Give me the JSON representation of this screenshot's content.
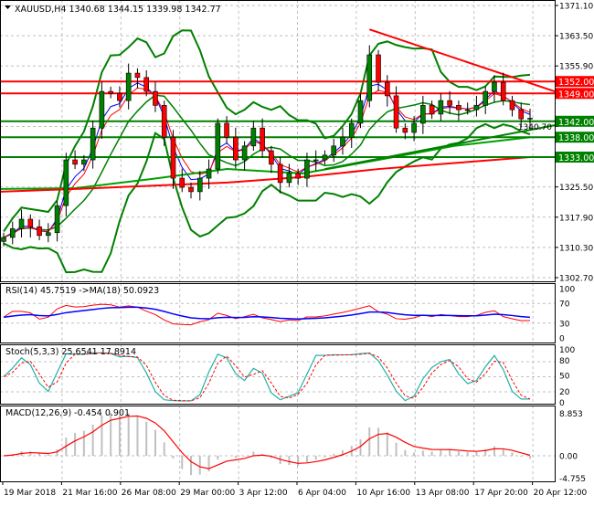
{
  "chart_data": {
    "type": "candlestick",
    "symbol_header": "XAUUSD,H4  1340.68 1344.15 1339.98 1342.77",
    "price_axis": {
      "range": [
        1302.7,
        1371.1
      ],
      "ticks": [
        "1371.10",
        "1363.50",
        "1355.90",
        "1340.70",
        "1325.50",
        "1317.90",
        "1310.30",
        "1302.70"
      ]
    },
    "time_axis": [
      "19 Mar 2018",
      "21 Mar 16:00",
      "26 Mar 08:00",
      "29 Mar 00:00",
      "3 Apr 12:00",
      "6 Apr 04:00",
      "10 Apr 16:00",
      "13 Apr 08:00",
      "17 Apr 20:00",
      "20 Apr 12:00"
    ],
    "closes": [
      1312.8,
      1315.0,
      1317.4,
      1315.5,
      1313.3,
      1314.0,
      1320.8,
      1332.3,
      1331.2,
      1332.3,
      1340.3,
      1349.5,
      1349.0,
      1347.2,
      1354.1,
      1353.0,
      1349.5,
      1346.0,
      1338.0,
      1327.7,
      1325.4,
      1324.3,
      1327.7,
      1330.0,
      1341.5,
      1338.0,
      1332.3,
      1335.8,
      1340.3,
      1334.6,
      1331.2,
      1326.6,
      1328.9,
      1327.7,
      1332.3,
      1332.3,
      1333.5,
      1335.8,
      1338.0,
      1341.5,
      1347.2,
      1358.7,
      1351.8,
      1348.4,
      1340.3,
      1339.2,
      1341.5,
      1346.0,
      1343.8,
      1347.2,
      1346.0,
      1344.9,
      1344.9,
      1346.0,
      1349.5,
      1351.8,
      1347.2,
      1344.9,
      1342.6,
      1342.77
    ],
    "ma_red": [
      1324.3,
      1325.0,
      1325.8,
      1326.6,
      1328.0,
      1330.0,
      1331.5,
      1333.0
    ],
    "ma_green": [
      1325.0,
      1325.2,
      1327.5,
      1330.0,
      1328.9,
      1332.3,
      1335.8,
      1338.0
    ],
    "levels": [
      {
        "price": 1352.0,
        "label": "1352.00",
        "color": "#ff0000"
      },
      {
        "price": 1349.0,
        "label": "1349.00",
        "color": "#ff0000"
      },
      {
        "price": 1342.0,
        "label": "1342.00",
        "color": "#008000"
      },
      {
        "price": 1338.0,
        "label": "1338.00",
        "color": "#008000"
      },
      {
        "price": 1333.0,
        "label": "1333.00",
        "color": "#008000"
      }
    ],
    "trendlines": [
      {
        "from": [
          41,
          1365.1
        ],
        "to": [
          60,
          1349.5
        ],
        "color": "#ff0000"
      },
      {
        "from": [
          36,
          1330.0
        ],
        "to": [
          60,
          1341.0
        ],
        "color": "#008000"
      }
    ],
    "colors": {
      "bull": "#008000",
      "bear": "#ff0000",
      "bands": "#008000",
      "ma_red": "#ff0000",
      "ma_green": "#00a000"
    },
    "rsi": {
      "label": "RSI(14) 45.7519  ->MA(18) 50.0923",
      "ticks": [
        "100",
        "70",
        "30",
        "0"
      ],
      "color": "#ff0000",
      "ma_color": "#0000ff"
    },
    "stoch": {
      "label": "Stoch(5,3,3) 25.6541 17.8914",
      "ticks": [
        "100",
        "80",
        "50",
        "20",
        "0"
      ],
      "main_color": "#20b2aa",
      "signal_color": "#ff0000"
    },
    "macd": {
      "label": "MACD(12,26,9) -0.454 0.901",
      "ticks": [
        "8.853",
        "0.00",
        "-4.755"
      ],
      "hist_color": "#c0c0c0",
      "signal_color": "#ff0000"
    }
  }
}
